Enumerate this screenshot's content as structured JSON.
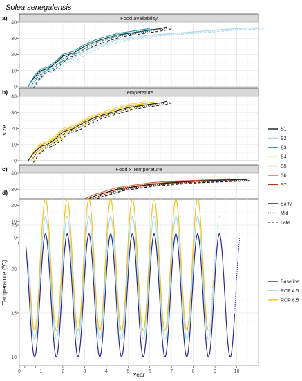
{
  "figure": {
    "species_title": "Solea senegalensis"
  },
  "chart_data": [
    {
      "type": "line",
      "panel_tag": "a)",
      "strip_title": "Food availability",
      "ylabel": "size",
      "xlim": [
        0,
        11
      ],
      "ylim": [
        0,
        40
      ],
      "yticks": [
        0,
        10,
        20,
        30,
        40
      ],
      "series": [
        {
          "name": "S1",
          "color": "#1a1a1a",
          "x": [
            0.4,
            0.7,
            1.0,
            1.3,
            1.7,
            2.0,
            2.5,
            3.0,
            3.5,
            4.0,
            4.5,
            5.0,
            5.5,
            6.0,
            6.5,
            6.8
          ],
          "y": [
            0,
            6,
            10,
            11,
            15,
            19,
            21,
            25,
            28,
            30,
            32,
            33,
            34,
            35,
            36,
            37
          ]
        },
        {
          "name": "S2",
          "color": "#a8d8ea",
          "x": [
            0.4,
            0.7,
            1.0,
            1.3,
            1.7,
            2.0,
            2.5,
            3.0,
            3.5,
            4.0,
            4.5,
            5.0,
            5.5,
            6.0,
            7.0,
            8.0,
            9.0,
            10.0,
            11.0
          ],
          "y": [
            0,
            5,
            9,
            10,
            13,
            16,
            18,
            22,
            25,
            27,
            29,
            30,
            31,
            32,
            33,
            34,
            35,
            36,
            36.5
          ]
        },
        {
          "name": "S3",
          "color": "#2196a6",
          "x": [
            0.4,
            0.7,
            1.0,
            1.3,
            1.7,
            2.0,
            2.5,
            3.0,
            3.5,
            4.0,
            4.5,
            5.0,
            5.5,
            6.0
          ],
          "y": [
            0,
            7,
            11,
            12,
            16,
            20,
            22,
            26,
            29,
            31,
            33,
            34,
            35,
            36
          ]
        }
      ]
    },
    {
      "type": "line",
      "panel_tag": "b)",
      "strip_title": "Temperature",
      "xlim": [
        0,
        11
      ],
      "ylim": [
        0,
        40
      ],
      "yticks": [
        0,
        10,
        20,
        30,
        40
      ],
      "series": [
        {
          "name": "S4",
          "color": "#f5d76e",
          "x": [
            0.4,
            0.7,
            1.0,
            1.3,
            1.7,
            2.0,
            2.5,
            3.0,
            3.5,
            4.0,
            4.5,
            5.0,
            5.5,
            5.8
          ],
          "y": [
            0,
            7,
            11,
            12,
            16,
            20,
            22,
            26,
            29,
            31,
            33,
            35,
            36,
            37
          ]
        },
        {
          "name": "S5",
          "color": "#e6b800",
          "x": [
            0.4,
            0.7,
            1.0,
            1.3,
            1.7,
            2.0,
            2.5,
            3.0,
            3.5,
            4.0,
            4.5,
            5.0,
            5.5,
            6.2
          ],
          "y": [
            0,
            6,
            10,
            11,
            15,
            19,
            21,
            25,
            28,
            30,
            32,
            34,
            35,
            36.5
          ]
        },
        {
          "name": "S1",
          "color": "#1a1a1a",
          "x": [
            0.4,
            0.7,
            1.0,
            1.3,
            1.7,
            2.0,
            2.5,
            3.0,
            3.5,
            4.0,
            4.5,
            5.0,
            5.5,
            6.0,
            6.5,
            6.8
          ],
          "y": [
            0,
            5.5,
            9,
            10,
            14,
            18,
            20,
            24,
            27,
            29,
            31,
            33,
            34,
            35,
            36,
            37
          ]
        }
      ]
    },
    {
      "type": "line",
      "panel_tag": "c)",
      "strip_title": "Food x Temperature",
      "xlim": [
        0,
        11
      ],
      "ylim": [
        0,
        40
      ],
      "yticks": [
        0,
        10,
        20,
        30,
        40
      ],
      "series": [
        {
          "name": "S6",
          "color": "#d9622b",
          "x": [
            0.4,
            0.7,
            1.0,
            1.3,
            1.7,
            2.0,
            2.5,
            3.0,
            3.5,
            4.0,
            4.5,
            5.0,
            5.5,
            6.0,
            7.0,
            8.0,
            9.0,
            9.7
          ],
          "y": [
            0,
            6,
            10,
            11,
            15,
            18,
            20,
            24,
            27,
            29,
            31,
            32,
            33,
            34,
            35,
            35.5,
            36,
            36.5
          ]
        },
        {
          "name": "S7",
          "color": "#b23a1a",
          "x": [
            0.4,
            0.7,
            1.0,
            1.3,
            1.7,
            2.0,
            2.5,
            3.0,
            3.5,
            4.0,
            4.5,
            5.0,
            5.5,
            6.0,
            7.0,
            8.0,
            9.0,
            9.5
          ],
          "y": [
            0,
            5,
            9,
            10,
            14,
            17,
            19,
            23,
            26,
            28,
            30,
            31,
            32,
            33,
            34.5,
            35,
            35.5,
            36
          ]
        },
        {
          "name": "S1",
          "color": "#1a1a1a",
          "x": [
            0.4,
            0.7,
            1.0,
            1.3,
            1.7,
            2.0,
            2.5,
            3.0,
            3.5,
            4.0,
            4.5,
            5.0,
            5.5,
            6.0,
            7.0,
            8.0,
            9.0,
            10.0,
            10.5
          ],
          "y": [
            0,
            5,
            8.5,
            9.5,
            13,
            17,
            19,
            23,
            26,
            28,
            30,
            31,
            32,
            33,
            34,
            35,
            35.5,
            36,
            36
          ]
        }
      ]
    },
    {
      "type": "line",
      "panel_tag": "d)",
      "xlabel": "Year",
      "ylabel": "Temperature (ºC)",
      "xlim": [
        0,
        11
      ],
      "ylim": [
        9,
        28
      ],
      "yticks": [
        10,
        15,
        20,
        25
      ],
      "xticks": [
        1,
        2,
        3,
        4,
        5,
        6,
        7,
        8,
        9,
        10
      ],
      "series": [
        {
          "name": "Baseline",
          "color": "#28288c",
          "mean": 17,
          "amplitude": 7,
          "x_start": 0.3,
          "x_end": 9.9
        },
        {
          "name": "RCP 4.5",
          "color": "#a6dcef",
          "mean": 19,
          "amplitude": 7,
          "x_start": 0.4,
          "x_end": 9.0
        },
        {
          "name": "RCP 8.5",
          "color": "#f2c11d",
          "mean": 20.5,
          "amplitude": 7.5,
          "x_start": 0.5,
          "x_end": 8.7
        }
      ]
    }
  ],
  "legend_scenarios": {
    "items": [
      {
        "label": "S1",
        "color": "#1a1a1a"
      },
      {
        "label": "S2",
        "color": "#a8d8ea"
      },
      {
        "label": "S3",
        "color": "#2196a6"
      },
      {
        "label": "S4",
        "color": "#f5d76e"
      },
      {
        "label": "S5",
        "color": "#e6b800"
      },
      {
        "label": "S6",
        "color": "#d9622b"
      },
      {
        "label": "S7",
        "color": "#b23a1a"
      }
    ]
  },
  "legend_period": {
    "items": [
      {
        "label": "Early",
        "dash": "solid"
      },
      {
        "label": "Mid",
        "dash": "dotted"
      },
      {
        "label": "Late",
        "dash": "dashed"
      }
    ]
  },
  "legend_climate": {
    "items": [
      {
        "label": "Baseline",
        "color": "#28288c"
      },
      {
        "label": "RCP 4.5",
        "color": "#a6dcef"
      },
      {
        "label": "RCP 8.5",
        "color": "#f2c11d"
      }
    ]
  },
  "shared_axis": {
    "xticks": [
      1,
      2,
      3,
      4,
      5,
      6,
      7,
      8,
      9,
      10
    ]
  }
}
